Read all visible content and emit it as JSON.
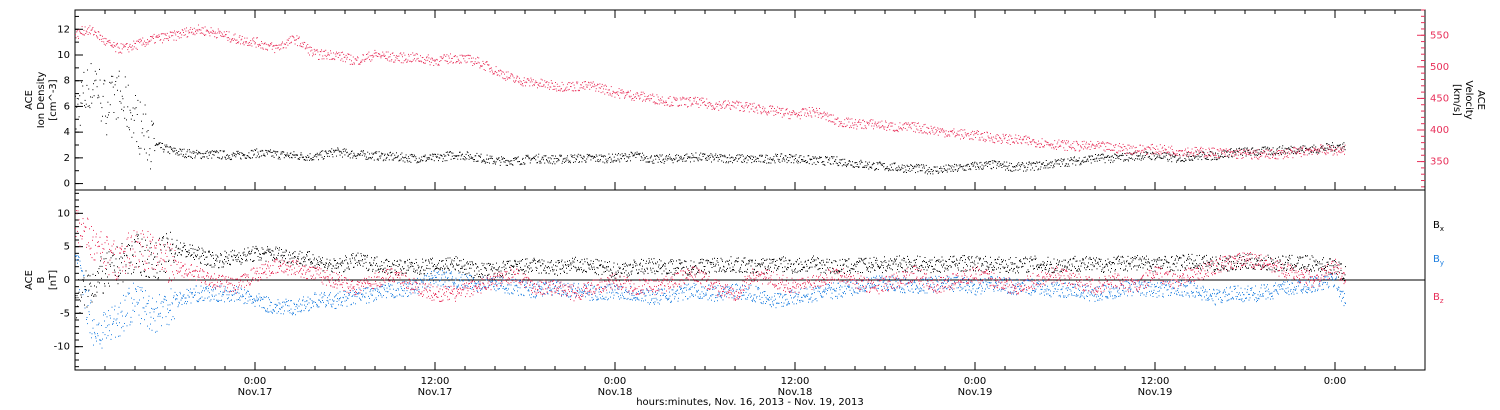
{
  "chart_data": [
    {
      "type": "scatter",
      "panel": "top",
      "y_left": {
        "label_lines": [
          "ACE",
          "Ion Density",
          "[cm^-3]"
        ],
        "ylim": [
          -0.5,
          13.5
        ],
        "ticks": [
          0,
          2,
          4,
          6,
          8,
          10,
          12
        ],
        "tick_labels": [
          "0",
          "2",
          "4",
          "6",
          "8",
          "10",
          "12"
        ]
      },
      "y_right": {
        "label_lines": [
          "ACE",
          "Velocity",
          "[km/s]"
        ],
        "ylim": [
          305,
          590
        ],
        "ticks": [
          350,
          400,
          450,
          500,
          550
        ],
        "tick_labels": [
          "350",
          "400",
          "450",
          "500",
          "550"
        ],
        "color": "#e8305a"
      },
      "series": [
        {
          "axis": "left",
          "color": "#000000",
          "x_hours": [
            0,
            1,
            2,
            3,
            4,
            5,
            6,
            7,
            8,
            10,
            12,
            14,
            16,
            18,
            20,
            22,
            24,
            26,
            28,
            30,
            32,
            34,
            36,
            38,
            40,
            42,
            44,
            46,
            48,
            50,
            52,
            54,
            56,
            58,
            60,
            62,
            64,
            66,
            68,
            70,
            72,
            74,
            76,
            78,
            80,
            82,
            84,
            86,
            88,
            90,
            92,
            94,
            96,
            98,
            100,
            102,
            104,
            106,
            108,
            110,
            112,
            114,
            116,
            118,
            120,
            122,
            124,
            126,
            127
          ],
          "values": [
            5.5,
            7,
            8,
            6,
            7,
            6,
            5,
            4,
            3,
            2.5,
            2.3,
            2.3,
            2.2,
            2.4,
            2.3,
            2.2,
            2.1,
            2.5,
            2.3,
            2.2,
            2.1,
            2.0,
            2.0,
            2.3,
            2.1,
            1.8,
            1.8,
            2.0,
            1.9,
            2.0,
            2.0,
            2.0,
            2.2,
            1.9,
            2.0,
            2.1,
            2.0,
            2.0,
            1.9,
            2.0,
            2.0,
            1.8,
            1.8,
            1.6,
            1.4,
            1.3,
            1.2,
            1.1,
            1.2,
            1.4,
            1.5,
            1.3,
            1.4,
            1.6,
            1.8,
            2.0,
            2.0,
            2.2,
            2.2,
            2.0,
            2.2,
            2.2,
            2.5,
            2.5,
            2.6,
            2.7,
            2.7,
            2.9,
            3.0
          ]
        },
        {
          "axis": "right",
          "color": "#e8305a",
          "x_hours": [
            0,
            1,
            2,
            3,
            4,
            5,
            6,
            8,
            10,
            12,
            14,
            16,
            18,
            20,
            22,
            24,
            26,
            28,
            30,
            32,
            34,
            36,
            38,
            40,
            42,
            44,
            46,
            48,
            50,
            52,
            54,
            56,
            58,
            60,
            62,
            64,
            66,
            68,
            70,
            72,
            74,
            76,
            78,
            80,
            82,
            84,
            86,
            88,
            90,
            92,
            94,
            96,
            98,
            100,
            102,
            104,
            106,
            108,
            110,
            112,
            114,
            116,
            118,
            120,
            122,
            124,
            126,
            127
          ],
          "values": [
            550,
            560,
            555,
            540,
            530,
            530,
            535,
            545,
            550,
            560,
            555,
            545,
            540,
            530,
            545,
            520,
            520,
            510,
            520,
            515,
            515,
            510,
            515,
            510,
            495,
            480,
            475,
            470,
            470,
            470,
            460,
            455,
            450,
            445,
            445,
            440,
            440,
            435,
            430,
            425,
            430,
            415,
            410,
            410,
            405,
            405,
            400,
            395,
            392,
            388,
            385,
            382,
            378,
            375,
            375,
            372,
            370,
            370,
            368,
            366,
            365,
            363,
            362,
            362,
            365,
            370,
            368,
            370
          ]
        }
      ]
    },
    {
      "type": "scatter",
      "panel": "bottom",
      "y_left": {
        "label_lines": [
          "ACE",
          "B",
          "[nT]"
        ],
        "ylim": [
          -13.5,
          13.5
        ],
        "ticks": [
          -10,
          -5,
          0,
          5,
          10
        ],
        "tick_labels": [
          "-10",
          "-5",
          "0",
          "5",
          "10"
        ]
      },
      "legend": [
        {
          "base": "B",
          "sub": "x",
          "color": "#000000"
        },
        {
          "base": "B",
          "sub": "y",
          "color": "#1e7fe0"
        },
        {
          "base": "B",
          "sub": "z",
          "color": "#e8305a"
        }
      ],
      "series": [
        {
          "legend": "Bx",
          "color": "#000000",
          "x_hours": [
            0,
            2,
            4,
            6,
            8,
            10,
            12,
            14,
            16,
            18,
            20,
            22,
            24,
            26,
            28,
            30,
            32,
            34,
            36,
            38,
            40,
            42,
            44,
            46,
            48,
            50,
            52,
            54,
            56,
            58,
            60,
            62,
            64,
            66,
            68,
            70,
            72,
            74,
            76,
            78,
            80,
            82,
            84,
            86,
            88,
            90,
            92,
            94,
            96,
            98,
            100,
            102,
            104,
            106,
            108,
            110,
            112,
            114,
            116,
            118,
            120,
            122,
            124,
            126,
            127
          ],
          "values": [
            -3,
            0,
            2,
            4,
            3,
            5,
            4,
            3,
            3.5,
            4,
            4,
            3.5,
            3,
            2,
            3,
            2.5,
            2,
            2,
            2.2,
            2.5,
            1.5,
            1.5,
            2.0,
            2.2,
            1.8,
            2.3,
            2.0,
            1.5,
            2.0,
            2.2,
            2.0,
            2.0,
            2.3,
            2.4,
            2.0,
            2.5,
            2.2,
            2.5,
            2.0,
            2.2,
            2.3,
            2.5,
            2.5,
            2.3,
            2.6,
            2.5,
            2.4,
            2.3,
            2.5,
            2.2,
            2.6,
            2.3,
            2.5,
            2.7,
            2.5,
            2.6,
            2.8,
            2.5,
            2.6,
            2.8,
            2.5,
            2.6,
            2.5,
            2.0,
            1.0
          ]
        },
        {
          "legend": "By",
          "color": "#1e7fe0",
          "x_hours": [
            0,
            2,
            4,
            6,
            8,
            10,
            12,
            14,
            16,
            18,
            20,
            22,
            24,
            26,
            28,
            30,
            32,
            34,
            36,
            38,
            40,
            42,
            44,
            46,
            48,
            50,
            52,
            54,
            56,
            58,
            60,
            62,
            64,
            66,
            68,
            70,
            72,
            74,
            76,
            78,
            80,
            82,
            84,
            86,
            88,
            90,
            92,
            94,
            96,
            98,
            100,
            102,
            104,
            106,
            108,
            110,
            112,
            114,
            116,
            118,
            120,
            122,
            124,
            126,
            127
          ],
          "values": [
            3,
            -8,
            -6,
            -3,
            -5,
            -3,
            -2,
            -2,
            -2,
            -3,
            -4,
            -4,
            -3,
            -3,
            -2.5,
            -2,
            -1.5,
            -1,
            0.5,
            0,
            -0.5,
            -0.5,
            -1,
            -1.5,
            -1,
            -1.5,
            -2,
            -1.5,
            -2,
            -2.5,
            -2,
            -1.5,
            -2,
            -1.5,
            -2,
            -3,
            -2.5,
            -2,
            -1.5,
            -1,
            -0.5,
            -0.5,
            -1,
            -0.5,
            -0.5,
            -1,
            -0.5,
            -1,
            -1,
            -1.5,
            -1.5,
            -2,
            -1.5,
            -1,
            -1.5,
            -1,
            -1.5,
            -2.5,
            -2,
            -2,
            -1.5,
            -1,
            -0.5,
            0,
            -3.5
          ]
        },
        {
          "legend": "Bz",
          "color": "#e8305a",
          "x_hours": [
            0,
            2,
            4,
            6,
            8,
            10,
            12,
            14,
            16,
            18,
            20,
            22,
            24,
            26,
            28,
            30,
            32,
            34,
            36,
            38,
            40,
            42,
            44,
            46,
            48,
            50,
            52,
            54,
            56,
            58,
            60,
            62,
            64,
            66,
            68,
            70,
            72,
            74,
            76,
            78,
            80,
            82,
            84,
            86,
            88,
            90,
            92,
            94,
            96,
            98,
            100,
            102,
            104,
            106,
            108,
            110,
            112,
            114,
            116,
            118,
            120,
            122,
            124,
            126,
            127
          ],
          "values": [
            9,
            5,
            3,
            5,
            4,
            2,
            1,
            0,
            -1,
            1,
            2,
            2,
            1,
            0,
            -1,
            0,
            1,
            -1,
            -2,
            -2,
            -1,
            0,
            1,
            -1,
            -1,
            -2,
            -1,
            0,
            -1,
            -1,
            0,
            1,
            -1,
            -2,
            1,
            0,
            -1,
            0,
            1,
            0,
            -1,
            0,
            1,
            -1,
            0,
            1,
            0,
            -1,
            0,
            1,
            0,
            -1,
            0,
            -1,
            1,
            0,
            1,
            2,
            3,
            3,
            2,
            1,
            0,
            2,
            0
          ]
        }
      ]
    }
  ],
  "x_axis": {
    "xlim_hours": [
      0,
      135
    ],
    "tick_hours": [
      18,
      36,
      54,
      72,
      90,
      108,
      126
    ],
    "tick_time_labels": [
      "0:00",
      "12:00",
      "0:00",
      "12:00",
      "0:00",
      "12:00",
      "0:00"
    ],
    "tick_date_labels": [
      "Nov.17",
      "Nov.17",
      "Nov.18",
      "Nov.18",
      "Nov.19",
      "Nov.19",
      ""
    ],
    "label": "hours:minutes, Nov. 16, 2013 - Nov. 19, 2013"
  }
}
